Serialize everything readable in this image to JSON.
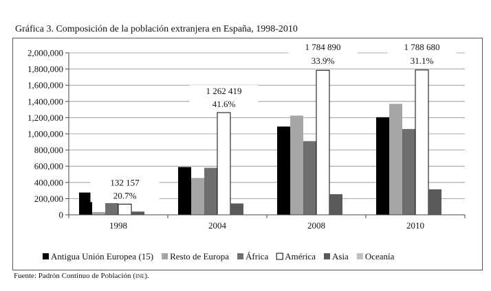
{
  "title": "Gráfica 3. Composición de la población extranjera en España, 1998-2010",
  "source": {
    "prefix": "Fuente: Padrón Continuo de Población (",
    "abbr": "ine",
    "suffix": ")."
  },
  "chart_data": {
    "type": "bar",
    "title": "Gráfica 3. Composición de la población extranjera en España, 1998-2010",
    "xlabel": "",
    "ylabel": "",
    "ylim": [
      0,
      2000000
    ],
    "yticks": [
      0,
      200000,
      400000,
      600000,
      800000,
      1000000,
      1200000,
      1400000,
      1600000,
      1800000,
      2000000
    ],
    "ytick_labels": [
      "0",
      "200,000",
      "400,000",
      "600,000",
      "800,000",
      "1,000,000",
      "1,200,000",
      "1,400,000",
      "1,600,000",
      "1,800,000",
      "2,000,000"
    ],
    "categories": [
      "1998",
      "2004",
      "2008",
      "2010"
    ],
    "grid": "horizontal",
    "legend_position": "bottom",
    "series": [
      {
        "name": "Antigua Unión Europea (15)",
        "color": "#000000",
        "values": [
          275000,
          590000,
          1090000,
          1205000
        ]
      },
      {
        "name": "Resto de Europa",
        "color": "#a6a6a6",
        "values": [
          35000,
          455000,
          1225000,
          1370000
        ]
      },
      {
        "name": "África",
        "color": "#6f6f6f",
        "values": [
          145000,
          580000,
          910000,
          1060000
        ]
      },
      {
        "name": "América",
        "color": "#ffffff",
        "values": [
          132157,
          1262419,
          1784890,
          1788680
        ]
      },
      {
        "name": "Asia",
        "color": "#595959",
        "values": [
          40000,
          140000,
          255000,
          315000
        ]
      },
      {
        "name": "Oceanía",
        "color": "#c0c0c0",
        "values": [
          1000,
          2000,
          3000,
          3000
        ]
      }
    ],
    "annotations": [
      {
        "category": "1998",
        "series": "América",
        "value_label": "132 157",
        "pct_label": "20.7%"
      },
      {
        "category": "2004",
        "series": "América",
        "value_label": "1 262 419",
        "pct_label": "41.6%"
      },
      {
        "category": "2008",
        "series": "América",
        "value_label": "1 784 890",
        "pct_label": "33.9%"
      },
      {
        "category": "2010",
        "series": "América",
        "value_label": "1 788 680",
        "pct_label": "31.1%"
      }
    ]
  }
}
